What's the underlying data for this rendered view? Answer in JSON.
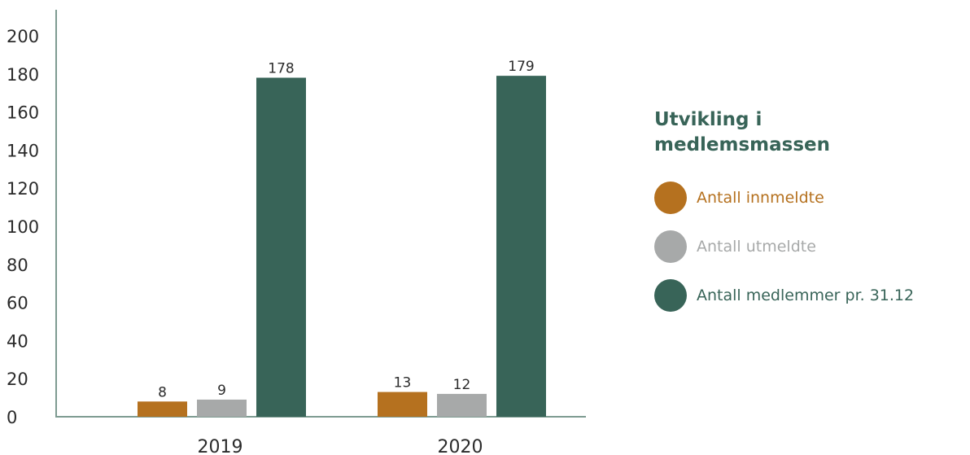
{
  "chart_data": {
    "type": "bar",
    "title": "Utvikling i medlemsmassen",
    "categories": [
      "2019",
      "2020"
    ],
    "series": [
      {
        "name": "Antall innmeldte",
        "values": [
          8,
          13
        ],
        "color": "#b5711f"
      },
      {
        "name": "Antall utmeldte",
        "values": [
          9,
          12
        ],
        "color": "#a7a9a9"
      },
      {
        "name": "Antall medlemmer pr. 31.12",
        "values": [
          178,
          179
        ],
        "color": "#386458"
      }
    ],
    "ylim": [
      0,
      200
    ],
    "yticks": [
      0,
      20,
      40,
      60,
      80,
      100,
      120,
      140,
      160,
      180,
      200
    ],
    "ytick_labels": [
      "0",
      "20",
      "40",
      "60",
      "80",
      "100",
      "120",
      "140",
      "160",
      "180",
      "200"
    ],
    "grid": false,
    "legend_position": "right",
    "axis_color": "#7e9b91",
    "title_color": "#386458"
  }
}
